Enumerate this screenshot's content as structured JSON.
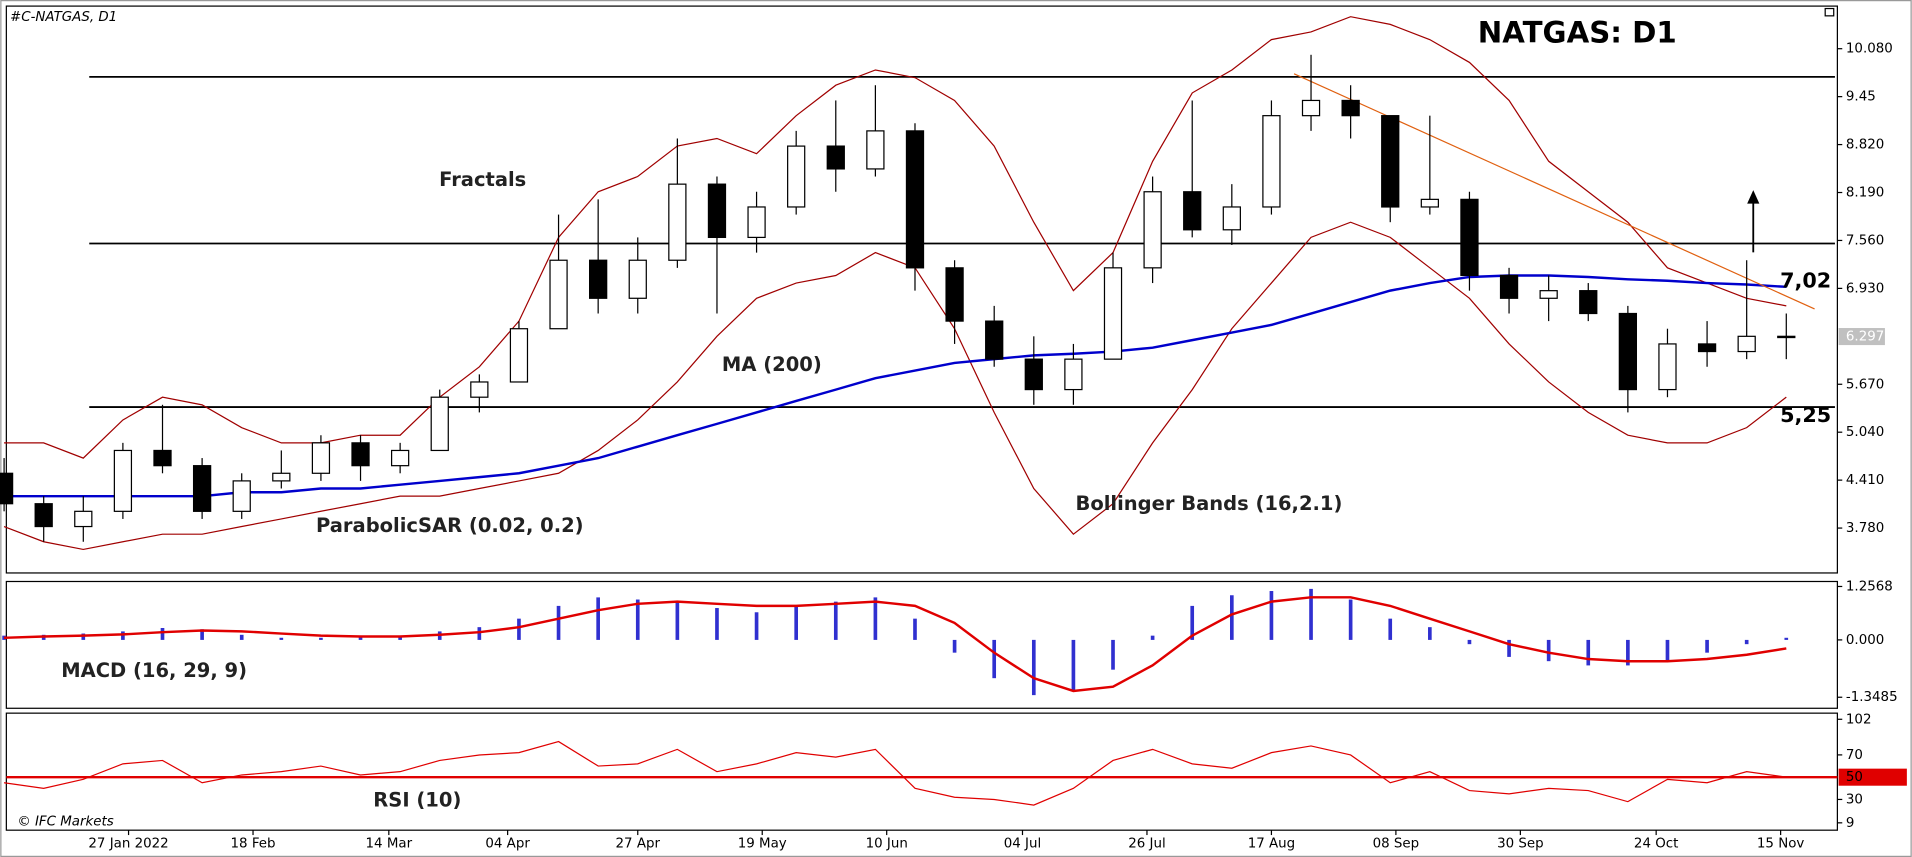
{
  "chart_data": [
    {
      "type": "candlestick",
      "title": "NATGAS: D1",
      "symbol": "#C-NATGAS, D1",
      "x": [
        2,
        9,
        16,
        23,
        30,
        37,
        44,
        51,
        58,
        65,
        72,
        79,
        86,
        93,
        100,
        107,
        114,
        121,
        128,
        135,
        142,
        149,
        156,
        163,
        170,
        177,
        184,
        191,
        198,
        205,
        212,
        219,
        226,
        233,
        240,
        247,
        254,
        261,
        268,
        275,
        282,
        289,
        296,
        303,
        310,
        317
      ],
      "open": [
        4.5,
        4.1,
        3.8,
        4.0,
        4.8,
        4.6,
        4.0,
        4.4,
        4.5,
        4.9,
        4.6,
        4.8,
        5.5,
        5.7,
        6.4,
        7.3,
        6.8,
        7.3,
        8.3,
        7.6,
        8.0,
        8.8,
        8.5,
        9.0,
        7.2,
        6.5,
        6.0,
        5.6,
        6.0,
        7.2,
        8.2,
        7.7,
        8.0,
        9.2,
        9.4,
        9.2,
        8.0,
        8.1,
        7.1,
        6.8,
        6.9,
        6.6,
        5.6,
        6.2,
        6.1,
        6.3
      ],
      "high": [
        4.7,
        4.2,
        4.2,
        4.9,
        5.4,
        4.7,
        4.5,
        4.8,
        5.0,
        5.0,
        4.9,
        5.6,
        5.8,
        6.5,
        7.9,
        8.1,
        7.6,
        8.9,
        8.4,
        8.2,
        9.0,
        9.4,
        9.6,
        9.1,
        7.3,
        6.7,
        6.3,
        6.2,
        7.4,
        8.4,
        9.4,
        8.3,
        9.4,
        10.0,
        9.6,
        9.2,
        9.2,
        8.2,
        7.2,
        7.1,
        7.0,
        6.7,
        6.4,
        6.5,
        7.3,
        6.6
      ],
      "low": [
        4.0,
        3.6,
        3.6,
        3.9,
        4.5,
        3.9,
        3.9,
        4.3,
        4.4,
        4.4,
        4.5,
        4.8,
        5.3,
        5.7,
        6.4,
        6.6,
        6.6,
        7.2,
        6.6,
        7.4,
        7.9,
        8.2,
        8.4,
        6.9,
        6.2,
        5.9,
        5.4,
        5.4,
        6.0,
        7.0,
        7.6,
        7.5,
        7.9,
        9.0,
        8.9,
        7.8,
        7.9,
        6.9,
        6.6,
        6.5,
        6.5,
        5.3,
        5.5,
        5.9,
        6.0,
        6.0
      ],
      "close": [
        4.1,
        3.8,
        4.0,
        4.8,
        4.6,
        4.0,
        4.4,
        4.5,
        4.9,
        4.6,
        4.8,
        5.5,
        5.7,
        6.4,
        7.3,
        6.8,
        7.3,
        8.3,
        7.6,
        8.0,
        8.8,
        8.5,
        9.0,
        7.2,
        6.5,
        6.0,
        5.6,
        6.0,
        7.2,
        8.2,
        7.7,
        8.0,
        9.2,
        9.4,
        9.2,
        8.0,
        8.1,
        7.1,
        6.8,
        6.9,
        6.6,
        5.6,
        6.2,
        6.1,
        6.3,
        6.3
      ],
      "ma200": {
        "label": "MA (200)",
        "color": "#0000cc",
        "values": [
          4.2,
          4.2,
          4.2,
          4.2,
          4.2,
          4.2,
          4.25,
          4.25,
          4.3,
          4.3,
          4.35,
          4.4,
          4.45,
          4.5,
          4.6,
          4.7,
          4.85,
          5.0,
          5.15,
          5.3,
          5.45,
          5.6,
          5.75,
          5.85,
          5.95,
          6.0,
          6.05,
          6.07,
          6.1,
          6.15,
          6.25,
          6.35,
          6.45,
          6.6,
          6.75,
          6.9,
          7.0,
          7.08,
          7.1,
          7.1,
          7.08,
          7.05,
          7.03,
          7.0,
          6.98,
          6.95
        ]
      },
      "bollinger": {
        "label": "Bollinger Bands (16,2.1)",
        "color": "#a00000",
        "upper": [
          4.9,
          4.9,
          4.7,
          5.2,
          5.5,
          5.4,
          5.1,
          4.9,
          4.9,
          5.0,
          5.0,
          5.5,
          5.9,
          6.5,
          7.6,
          8.2,
          8.4,
          8.8,
          8.9,
          8.7,
          9.2,
          9.6,
          9.8,
          9.7,
          9.4,
          8.8,
          7.8,
          6.9,
          7.4,
          8.6,
          9.5,
          9.8,
          10.2,
          10.3,
          10.5,
          10.4,
          10.2,
          9.9,
          9.4,
          8.6,
          8.2,
          7.8,
          7.2,
          7.0,
          6.8,
          6.7
        ],
        "lower": [
          3.8,
          3.6,
          3.5,
          3.6,
          3.7,
          3.7,
          3.8,
          3.9,
          4.0,
          4.1,
          4.2,
          4.2,
          4.3,
          4.4,
          4.5,
          4.8,
          5.2,
          5.7,
          6.3,
          6.8,
          7.0,
          7.1,
          7.4,
          7.2,
          6.4,
          5.3,
          4.3,
          3.7,
          4.1,
          4.9,
          5.6,
          6.4,
          7.0,
          7.6,
          7.8,
          7.6,
          7.2,
          6.8,
          6.2,
          5.7,
          5.3,
          5.0,
          4.9,
          4.9,
          5.1,
          5.5
        ]
      },
      "annotations": [
        "Fractals",
        "ParabolicSAR (0.02, 0.2)"
      ],
      "levels": [
        9.71,
        7.52,
        5.37
      ],
      "trendline": {
        "color": "#e06010",
        "x": [
          230,
          322
        ],
        "y": [
          9.75,
          6.66
        ]
      },
      "level_labels": [
        {
          "value": 7.02,
          "label": "7,02"
        },
        {
          "value": 5.25,
          "label": "5,25"
        }
      ],
      "last_price": 6.297,
      "xlim": [
        2.4,
        325.6
      ],
      "xticks": [
        {
          "value": 24,
          "label": "27 Jan 2022"
        },
        {
          "value": 46,
          "label": "18 Feb"
        },
        {
          "value": 70,
          "label": "14 Mar"
        },
        {
          "value": 91,
          "label": "04 Apr"
        },
        {
          "value": 114,
          "label": "27 Apr"
        },
        {
          "value": 136,
          "label": "19 May"
        },
        {
          "value": 158,
          "label": "10 Jun"
        },
        {
          "value": 182,
          "label": "04 Jul"
        },
        {
          "value": 204,
          "label": "26 Jul"
        },
        {
          "value": 226,
          "label": "17 Aug"
        },
        {
          "value": 248,
          "label": "08 Sep"
        },
        {
          "value": 270,
          "label": "30 Sep"
        },
        {
          "value": 294,
          "label": "24 Oct"
        },
        {
          "value": 316,
          "label": "15 Nov"
        }
      ],
      "ylim": [
        3.19,
        10.64
      ],
      "yticks": [
        {
          "value": 10.08,
          "label": "10.080"
        },
        9.45,
        {
          "value": 8.82,
          "label": "8.820"
        },
        {
          "value": 8.19,
          "label": "8.190"
        },
        {
          "value": 7.56,
          "label": "7.560"
        },
        {
          "value": 6.93,
          "label": "6.930"
        },
        {
          "value": 5.67,
          "label": "5.670"
        },
        {
          "value": 5.04,
          "label": "5.040"
        },
        {
          "value": 4.41,
          "label": "4.410"
        },
        {
          "value": 3.78,
          "label": "3.780"
        }
      ]
    },
    {
      "type": "macd",
      "label": "MACD (16, 29, 9)",
      "hist_color": "#3030d0",
      "signal_color": "#e00000",
      "values": [
        0.1,
        0.12,
        0.15,
        0.2,
        0.28,
        0.25,
        0.12,
        0.05,
        0.05,
        0.08,
        0.1,
        0.2,
        0.3,
        0.5,
        0.8,
        1.0,
        0.95,
        0.9,
        0.75,
        0.65,
        0.8,
        0.9,
        1.0,
        0.5,
        -0.3,
        -0.9,
        -1.3,
        -1.2,
        -0.7,
        0.1,
        0.8,
        1.05,
        1.15,
        1.2,
        0.95,
        0.5,
        0.3,
        -0.1,
        -0.4,
        -0.5,
        -0.6,
        -0.6,
        -0.5,
        -0.3,
        -0.1,
        0.05
      ],
      "signal": [
        0.05,
        0.08,
        0.1,
        0.13,
        0.18,
        0.22,
        0.2,
        0.15,
        0.1,
        0.08,
        0.08,
        0.12,
        0.18,
        0.3,
        0.5,
        0.7,
        0.85,
        0.9,
        0.85,
        0.8,
        0.8,
        0.85,
        0.9,
        0.8,
        0.4,
        -0.3,
        -0.9,
        -1.2,
        -1.1,
        -0.6,
        0.1,
        0.6,
        0.9,
        1.0,
        1.0,
        0.8,
        0.5,
        0.2,
        -0.1,
        -0.3,
        -0.45,
        -0.5,
        -0.5,
        -0.45,
        -0.35,
        -0.2
      ],
      "ylim": [
        -1.608,
        1.374
      ],
      "yticks": [
        1.2568,
        {
          "value": 0,
          "label": "0.000"
        },
        -1.3485
      ]
    },
    {
      "type": "rsi",
      "label": "RSI (10)",
      "color": "#e00000",
      "values": [
        45,
        40,
        48,
        62,
        65,
        45,
        52,
        55,
        60,
        52,
        55,
        65,
        70,
        72,
        82,
        60,
        62,
        75,
        55,
        62,
        72,
        68,
        75,
        40,
        32,
        30,
        25,
        40,
        65,
        75,
        62,
        58,
        72,
        78,
        70,
        45,
        55,
        38,
        35,
        40,
        38,
        28,
        48,
        45,
        55,
        50
      ],
      "midline": 50,
      "ylim": [
        2.4,
        107.5
      ],
      "yticks": [
        102,
        70,
        30,
        9
      ]
    }
  ],
  "footer": "© IFC Markets"
}
